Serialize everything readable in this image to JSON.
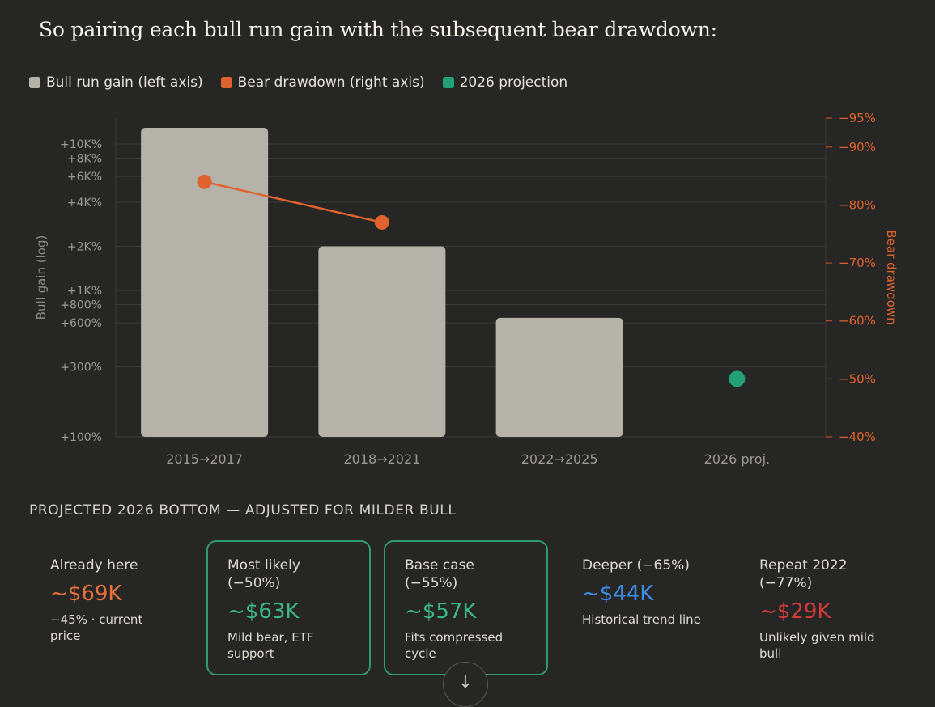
{
  "heading": "So pairing each bull run gain with the subsequent bear drawdown:",
  "legend": [
    {
      "label": "Bull run gain (left axis)",
      "color": "#b5b2a9"
    },
    {
      "label": "Bear drawdown (right axis)",
      "color": "#e0622f"
    },
    {
      "label": "2026 projection",
      "color": "#22a078"
    }
  ],
  "chart_data": {
    "type": "bar",
    "categories": [
      "2015→2017",
      "2018→2021",
      "2022→2025",
      "2026 proj."
    ],
    "series": [
      {
        "name": "Bull run gain (left axis)",
        "axis": "left",
        "type": "bar",
        "values": [
          14000,
          2000,
          650,
          null
        ],
        "color": "#b5b2a9"
      },
      {
        "name": "Bear drawdown (right axis)",
        "axis": "right",
        "type": "line",
        "values": [
          -84,
          -77,
          null,
          null
        ],
        "color": "#e0622f"
      },
      {
        "name": "2026 projection",
        "axis": "right",
        "type": "scatter",
        "values": [
          null,
          null,
          null,
          -50
        ],
        "color": "#22a078"
      }
    ],
    "y_left": {
      "label": "Bull gain (log)",
      "scale": "log",
      "ticks": [
        {
          "value": 100,
          "label": "+100%"
        },
        {
          "value": 300,
          "label": "+300%"
        },
        {
          "value": 600,
          "label": "+600%"
        },
        {
          "value": 800,
          "label": "+800%"
        },
        {
          "value": 1000,
          "label": "+1K%"
        },
        {
          "value": 2000,
          "label": "+2K%"
        },
        {
          "value": 4000,
          "label": "+4K%"
        },
        {
          "value": 6000,
          "label": "+6K%"
        },
        {
          "value": 8000,
          "label": "+8K%"
        },
        {
          "value": 10000,
          "label": "+10K%"
        }
      ]
    },
    "y_right": {
      "label": "Bear drawdown",
      "range": [
        -40,
        -95
      ],
      "ticks": [
        {
          "value": -40,
          "label": "−40%"
        },
        {
          "value": -50,
          "label": "−50%"
        },
        {
          "value": -60,
          "label": "−60%"
        },
        {
          "value": -70,
          "label": "−70%"
        },
        {
          "value": -80,
          "label": "−80%"
        },
        {
          "value": -90,
          "label": "−90%"
        },
        {
          "value": -95,
          "label": "−95%"
        }
      ]
    },
    "grid": true
  },
  "section_title": "PROJECTED 2026 BOTTOM — ADJUSTED FOR MILDER BULL",
  "cards": [
    {
      "title": "Already here",
      "value": "~$69K",
      "sub": "−45% · current\nprice",
      "color": "#e8703a",
      "boxed": false
    },
    {
      "title": "Most likely\n(−50%)",
      "value": "~$63K",
      "sub": "Mild bear, ETF\nsupport",
      "color": "#3bb58a",
      "boxed": true
    },
    {
      "title": "Base case\n(−55%)",
      "value": "~$57K",
      "sub": "Fits compressed\ncycle",
      "color": "#3bb58a",
      "boxed": true
    },
    {
      "title": "Deeper (−65%)",
      "value": "~$44K",
      "sub": "Historical trend line",
      "color": "#3b8ee8",
      "boxed": false
    },
    {
      "title": "Repeat 2022\n(−77%)",
      "value": "~$29K",
      "sub": "Unlikely given mild\nbull",
      "color": "#d23a3a",
      "boxed": false
    }
  ],
  "scroll_icon": "arrow-down-icon",
  "scroll_glyph": "↓"
}
